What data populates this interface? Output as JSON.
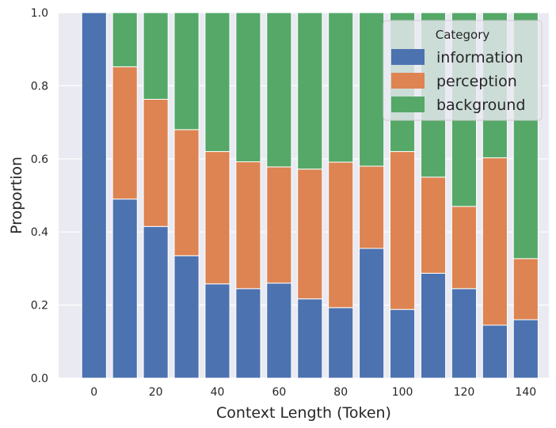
{
  "chart_data": {
    "type": "bar",
    "stacked": true,
    "xlabel": "Context Length (Token)",
    "ylabel": "Proportion",
    "ylim": [
      0,
      1
    ],
    "xlim": [
      -11.5,
      147.5
    ],
    "x": [
      0,
      10,
      20,
      30,
      40,
      50,
      60,
      70,
      80,
      90,
      100,
      110,
      120,
      130,
      140
    ],
    "xticks": [
      0,
      20,
      40,
      60,
      80,
      100,
      120,
      140
    ],
    "yticks": [
      0.0,
      0.2,
      0.4,
      0.6,
      0.8,
      1.0
    ],
    "ytick_labels": [
      "0.0",
      "0.2",
      "0.4",
      "0.6",
      "0.8",
      "1.0"
    ],
    "grid": true,
    "legend": {
      "title": "Category",
      "placement": "top-right"
    },
    "series": [
      {
        "name": "information",
        "color": "#4c72b0",
        "values": [
          1.0,
          0.49,
          0.415,
          0.335,
          0.258,
          0.245,
          0.26,
          0.217,
          0.193,
          0.355,
          0.188,
          0.287,
          0.245,
          0.145,
          0.16
        ]
      },
      {
        "name": "perception",
        "color": "#dd8452",
        "values": [
          0.0,
          0.362,
          0.348,
          0.345,
          0.362,
          0.347,
          0.318,
          0.355,
          0.398,
          0.225,
          0.432,
          0.263,
          0.225,
          0.458,
          0.167
        ]
      },
      {
        "name": "background",
        "color": "#55a868",
        "values": [
          0.0,
          0.148,
          0.237,
          0.32,
          0.38,
          0.408,
          0.422,
          0.428,
          0.409,
          0.42,
          0.38,
          0.45,
          0.53,
          0.397,
          0.673
        ]
      }
    ]
  }
}
